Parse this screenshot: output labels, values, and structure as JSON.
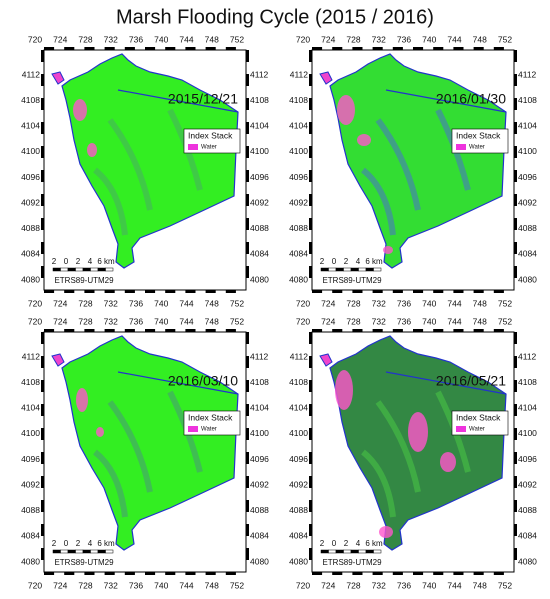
{
  "title": "Marsh Flooding Cycle (2015 / 2016)",
  "panels": [
    {
      "date": "2015/12/21"
    },
    {
      "date": "2016/01/30"
    },
    {
      "date": "2016/03/10"
    },
    {
      "date": "2016/05/21"
    }
  ],
  "x_ticks": [
    720,
    724,
    728,
    732,
    736,
    740,
    744,
    748,
    752
  ],
  "y_ticks": [
    4080,
    4084,
    4088,
    4092,
    4096,
    4100,
    4104,
    4108,
    4112
  ],
  "legend": {
    "title": "Index Stack",
    "items": [
      "Water"
    ]
  },
  "scale_bar": {
    "labels": [
      "2",
      "0",
      "2",
      "4",
      "6 km"
    ],
    "crs": "ETRS89-UTM29"
  }
}
